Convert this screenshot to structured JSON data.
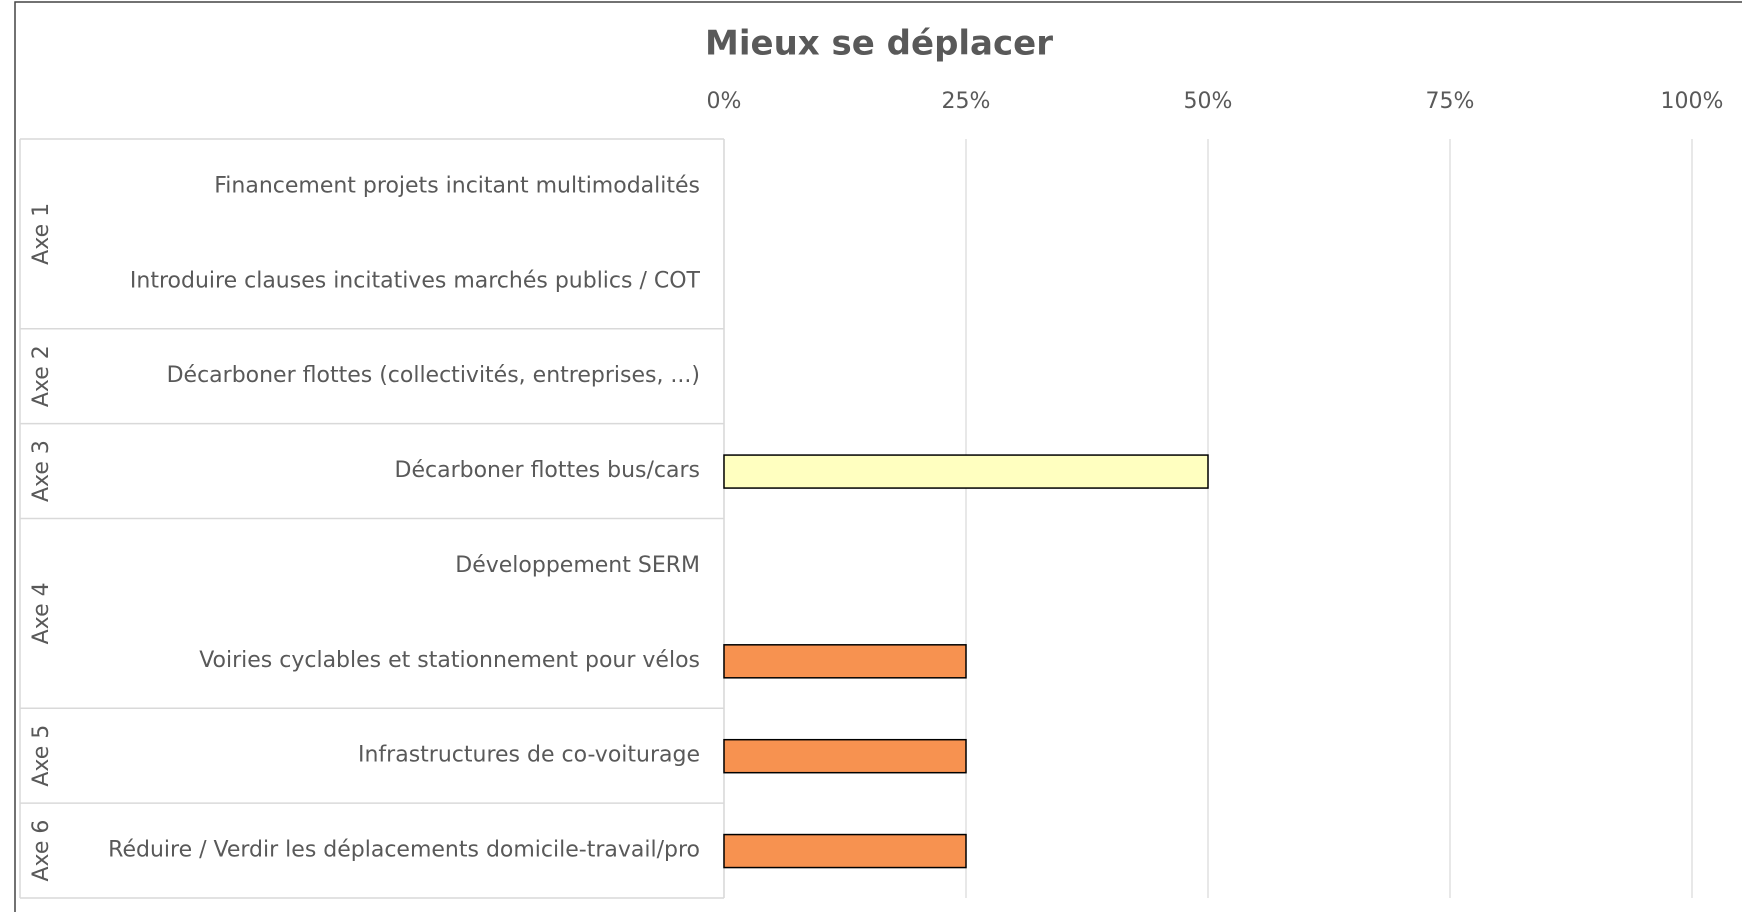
{
  "chart_data": {
    "type": "bar",
    "orientation": "horizontal",
    "title": "Mieux se déplacer",
    "groups": [
      {
        "name": "Axe 1",
        "categories": [
          "Financement projets incitant multimodalités",
          "Introduire clauses incitatives marchés publics / COT"
        ],
        "values": [
          0,
          0
        ],
        "colors": [
          "#f79250",
          "#f79250"
        ]
      },
      {
        "name": "Axe 2",
        "categories": [
          "Décarboner flottes (collectivités, entreprises, ...)"
        ],
        "values": [
          0
        ],
        "colors": [
          "#f79250"
        ]
      },
      {
        "name": "Axe 3",
        "categories": [
          "Décarboner flottes bus/cars"
        ],
        "values": [
          50
        ],
        "colors": [
          "#ffffc0"
        ]
      },
      {
        "name": "Axe 4",
        "categories": [
          "Développement SERM",
          "Voiries cyclables et stationnement pour vélos"
        ],
        "values": [
          0,
          25
        ],
        "colors": [
          "#f79250",
          "#f79250"
        ]
      },
      {
        "name": "Axe 5",
        "categories": [
          "Infrastructures de co-voiturage"
        ],
        "values": [
          25
        ],
        "colors": [
          "#f79250"
        ]
      },
      {
        "name": "Axe 6",
        "categories": [
          "Réduire / Verdir les déplacements domicile-travail/pro"
        ],
        "values": [
          25
        ],
        "colors": [
          "#f79250"
        ]
      }
    ],
    "xlim": [
      0,
      100
    ],
    "xticks": [
      {
        "value": 0,
        "label": "0%"
      },
      {
        "value": 25,
        "label": "25%"
      },
      {
        "value": 50,
        "label": "50%"
      },
      {
        "value": 75,
        "label": "75%"
      },
      {
        "value": 100,
        "label": "100%"
      }
    ],
    "grid": true
  }
}
